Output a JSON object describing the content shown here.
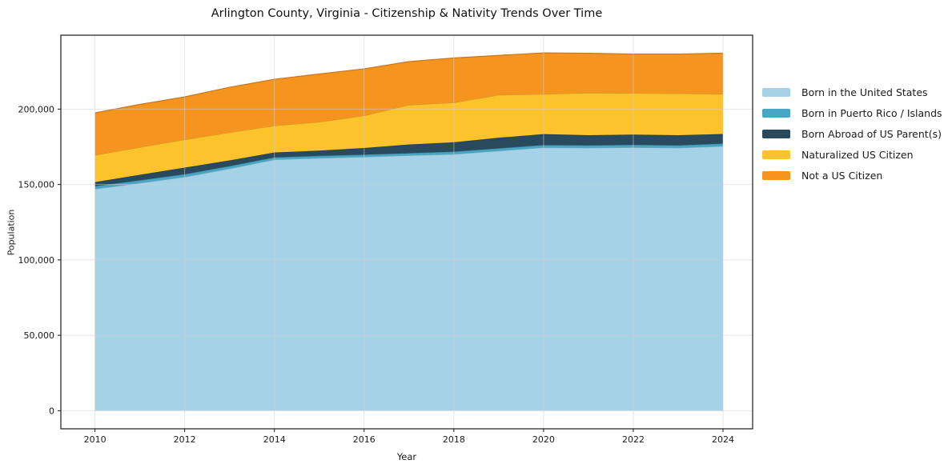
{
  "chart_data": {
    "type": "area",
    "stacked": true,
    "title": "Arlington County, Virginia - Citizenship & Nativity Trends Over Time",
    "xlabel": "Year",
    "ylabel": "Population",
    "x": [
      2010,
      2011,
      2012,
      2013,
      2014,
      2015,
      2016,
      2017,
      2018,
      2019,
      2020,
      2021,
      2022,
      2023,
      2024
    ],
    "series": [
      {
        "name": "Born in the United States",
        "color": "#a6d2e8",
        "values": [
          147000,
          151000,
          155000,
          160500,
          166500,
          167500,
          168300,
          169300,
          170100,
          172300,
          174500,
          174300,
          174600,
          174300,
          175400
        ]
      },
      {
        "name": "Born in Puerto Rico / Islands",
        "color": "#46a7c4",
        "values": [
          1900,
          1800,
          1800,
          1700,
          1500,
          1500,
          1500,
          1500,
          1700,
          1700,
          1700,
          1700,
          1700,
          1700,
          1700
        ]
      },
      {
        "name": "Born Abroad of US Parent(s)",
        "color": "#29495d",
        "values": [
          2700,
          3600,
          4400,
          3800,
          3200,
          3500,
          4400,
          5700,
          6200,
          7000,
          7200,
          6700,
          6800,
          6700,
          6400
        ]
      },
      {
        "name": "Naturalized US Citizen",
        "color": "#fcc42a",
        "values": [
          17900,
          18300,
          18600,
          18500,
          17800,
          19000,
          21500,
          26300,
          26300,
          28400,
          26500,
          28100,
          27400,
          27600,
          26500
        ]
      },
      {
        "name": "Not a US Citizen",
        "color": "#f69420",
        "values": [
          28000,
          28400,
          28300,
          30000,
          30800,
          31800,
          31000,
          28700,
          29600,
          26200,
          27400,
          26200,
          26000,
          26200,
          27100
        ]
      }
    ],
    "x_ticks": [
      2010,
      2012,
      2014,
      2016,
      2018,
      2020,
      2022,
      2024
    ],
    "y_ticks": [
      0,
      50000,
      100000,
      150000,
      200000
    ],
    "y_tick_labels": [
      "0",
      "50,000",
      "100,000",
      "150,000",
      "200,000"
    ],
    "xlim": [
      2009.24,
      2024.66
    ],
    "ylim": [
      -12000,
      249000
    ],
    "grid": true,
    "legend_position": "right",
    "colors": {
      "background": "#ffffff",
      "gridline": "#cfcfcf",
      "spine": "#1a1a1a",
      "text": "#1a1a1a"
    }
  }
}
